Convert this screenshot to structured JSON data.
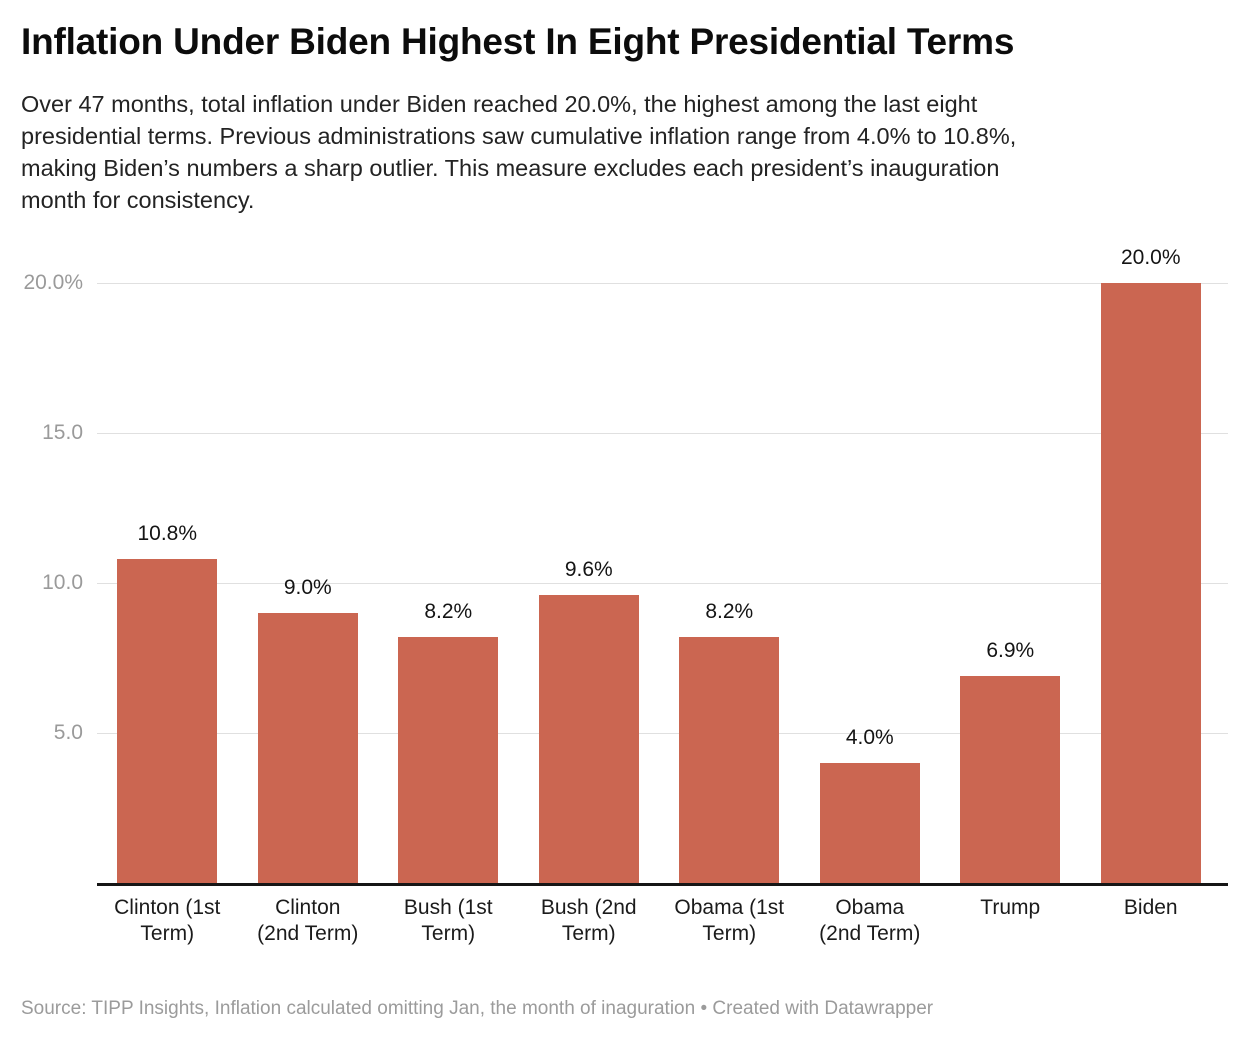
{
  "header": {
    "title": "Inflation Under Biden Highest In Eight Presidential Terms",
    "subtitle": "Over 47 months, total inflation under Biden reached 20.0%, the highest among the last eight presidential terms. Previous administrations saw cumulative inflation range from 4.0% to 10.8%, making Biden’s numbers a sharp outlier. This measure excludes each president’s inauguration month for consistency.",
    "subtitle_lines": [
      "Over 47 months, total inflation under Biden reached 20.0%, the highest among the last eight",
      "presidential terms. Previous administrations saw cumulative inflation range from 4.0% to 10.8%,",
      "making Biden’s numbers a sharp outlier. This measure excludes each president’s inauguration",
      "month for consistency."
    ]
  },
  "chart_data": {
    "type": "bar",
    "title": "Inflation Under Biden Highest In Eight Presidential Terms",
    "categories": [
      "Clinton (1st Term)",
      "Clinton (2nd Term)",
      "Bush (1st Term)",
      "Bush (2nd Term)",
      "Obama (1st Term)",
      "Obama (2nd Term)",
      "Trump",
      "Biden"
    ],
    "category_label_lines": [
      [
        "Clinton (1st",
        "Term)"
      ],
      [
        "Clinton",
        "(2nd Term)"
      ],
      [
        "Bush (1st",
        "Term)"
      ],
      [
        "Bush (2nd",
        "Term)"
      ],
      [
        "Obama (1st",
        "Term)"
      ],
      [
        "Obama",
        "(2nd Term)"
      ],
      [
        "Trump"
      ],
      [
        "Biden"
      ]
    ],
    "values": [
      10.8,
      9.0,
      8.2,
      9.6,
      8.2,
      4.0,
      6.9,
      20.0
    ],
    "value_labels": [
      "10.8%",
      "9.0%",
      "8.2%",
      "9.6%",
      "8.2%",
      "4.0%",
      "6.9%",
      "20.0%"
    ],
    "xlabel": "",
    "ylabel": "",
    "ylim": [
      0,
      20
    ],
    "yticks": [
      {
        "value": 5,
        "label": "5.0"
      },
      {
        "value": 10,
        "label": "10.0"
      },
      {
        "value": 15,
        "label": "15.0"
      },
      {
        "value": 20,
        "label": "20.0%"
      }
    ],
    "grid": true,
    "legend_position": "none",
    "bar_color": "#CB6651"
  },
  "footer": {
    "source": "Source: TIPP Insights, Inflation calculated omitting Jan, the month of inaguration • Created with Datawrapper"
  },
  "colors": {
    "background": "#ffffff",
    "bar": "#CB6651",
    "title_text": "#0c0c0c",
    "body_text": "#232323",
    "axis_text": "#9a9a9a",
    "gridline": "#e0e0e0",
    "axis_line": "#161616",
    "source_text": "#9b9b9b"
  }
}
